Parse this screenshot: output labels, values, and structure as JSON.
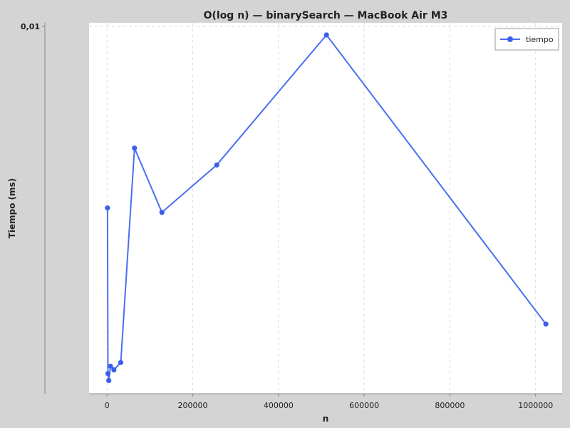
{
  "colors": {
    "background": "#d4d4d4",
    "plot_background": "#ffffff",
    "series": "#4a6ff2",
    "point": "#3b5fe8",
    "grid": "#dcdcdc"
  },
  "chart_data": {
    "type": "line",
    "title": "O(log n) — binarySearch — MacBook Air M3",
    "xlabel": "n",
    "ylabel": "Tiempo (ms)",
    "xlim": [
      -42000,
      1062000
    ],
    "ylim": [
      0.0,
      0.0101
    ],
    "grid": true,
    "legend": "top-right",
    "x_ticks": [
      {
        "value": 0,
        "label": "0"
      },
      {
        "value": 200000,
        "label": "200000"
      },
      {
        "value": 400000,
        "label": "400000"
      },
      {
        "value": 600000,
        "label": "600000"
      },
      {
        "value": 800000,
        "label": "800000"
      },
      {
        "value": 1000000,
        "label": "1000000"
      }
    ],
    "y_ticks": [
      {
        "value": 0.01,
        "label": "0,01"
      }
    ],
    "series": [
      {
        "name": "tiempo",
        "x": [
          1000,
          2000,
          4000,
          8000,
          16000,
          32000,
          64000,
          128000,
          256000,
          512000,
          1024000
        ],
        "y": [
          0.00506,
          0.00055,
          0.00036,
          0.00075,
          0.00065,
          0.00085,
          0.00669,
          0.00494,
          0.00623,
          0.00977,
          0.0019
        ]
      }
    ]
  }
}
